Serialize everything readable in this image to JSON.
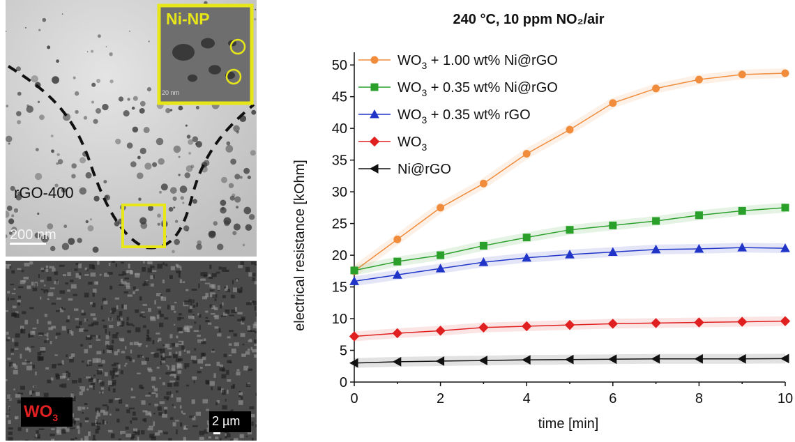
{
  "tem_image": {
    "label": "rGO-400",
    "scale_bar": "200 nm",
    "inset_label": "Ni-NP",
    "inset_scale": "20 nm",
    "highlight_color": "#e6e619"
  },
  "sem_image": {
    "label_main": "WO",
    "label_sub": "3",
    "scale_bar": "2 µm",
    "label_color": "#e02020"
  },
  "chart_data": {
    "type": "line",
    "title": "240 °C, 10 ppm NO₂/air",
    "xlabel": "time [min]",
    "ylabel": "electrical resistance [kOhm]",
    "xlim": [
      0,
      10
    ],
    "ylim": [
      0,
      52
    ],
    "xticks": [
      0,
      2,
      4,
      6,
      8,
      10
    ],
    "yticks": [
      0,
      5,
      10,
      15,
      20,
      25,
      30,
      35,
      40,
      45,
      50
    ],
    "legend_position": "top-left",
    "x": [
      0,
      1,
      2,
      3,
      4,
      5,
      6,
      7,
      8,
      9,
      10
    ],
    "series": [
      {
        "name": "WO3 + 1.00 wt% Ni@rGO",
        "legend_main": "WO",
        "legend_sub": "3",
        "legend_rest": " + 1.00 wt% Ni@rGO",
        "color": "#f08c3c",
        "marker": "circle",
        "values": [
          17.5,
          22.5,
          27.5,
          31.3,
          36.0,
          39.8,
          44.0,
          46.3,
          47.7,
          48.5,
          48.7
        ]
      },
      {
        "name": "WO3 + 0.35 wt% Ni@rGO",
        "legend_main": "WO",
        "legend_sub": "3",
        "legend_rest": " + 0.35 wt% Ni@rGO",
        "color": "#2aa02a",
        "marker": "square",
        "values": [
          17.6,
          19.0,
          20.0,
          21.5,
          22.8,
          24.0,
          24.7,
          25.4,
          26.3,
          27.0,
          27.5
        ]
      },
      {
        "name": "WO3 + 0.35 wt% rGO",
        "legend_main": "WO",
        "legend_sub": "3",
        "legend_rest": " + 0.35 wt% rGO",
        "color": "#2035c8",
        "marker": "triangle-up",
        "values": [
          15.9,
          16.9,
          17.9,
          18.9,
          19.6,
          20.1,
          20.5,
          20.9,
          21.0,
          21.2,
          21.1
        ]
      },
      {
        "name": "WO3",
        "legend_main": "WO",
        "legend_sub": "3",
        "legend_rest": "",
        "color": "#e02020",
        "marker": "diamond",
        "values": [
          7.2,
          7.7,
          8.1,
          8.6,
          8.8,
          9.0,
          9.2,
          9.3,
          9.4,
          9.5,
          9.6
        ]
      },
      {
        "name": "Ni@rGO",
        "legend_main": "Ni@rGO",
        "legend_sub": "",
        "legend_rest": "",
        "color": "#111111",
        "marker": "triangle-left",
        "values": [
          3.0,
          3.2,
          3.3,
          3.4,
          3.5,
          3.55,
          3.6,
          3.65,
          3.65,
          3.65,
          3.7
        ]
      }
    ]
  }
}
